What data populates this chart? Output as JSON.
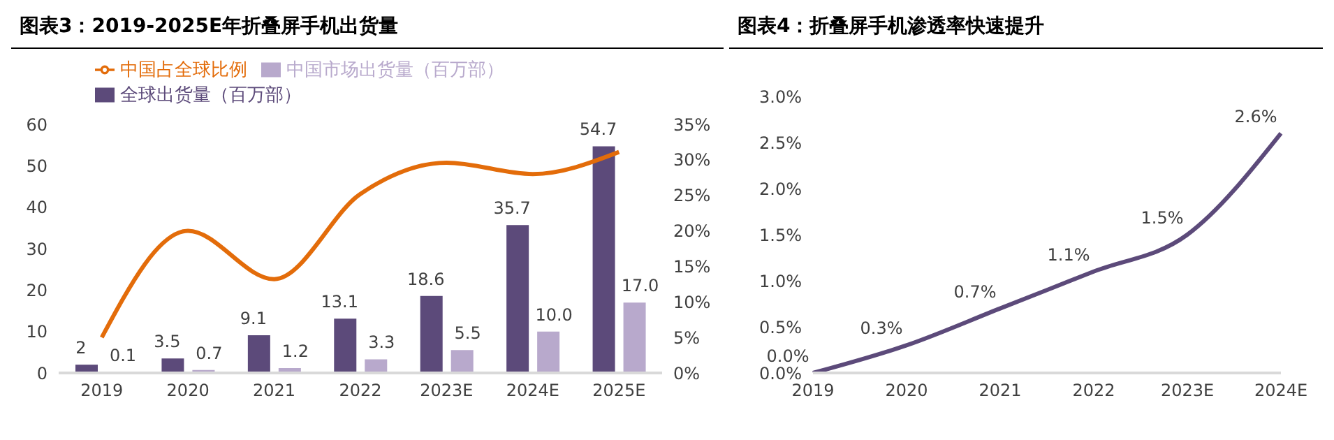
{
  "chart_data": [
    {
      "type": "bar",
      "title": "图表3：2019-2025E年折叠屏手机出货量",
      "categories": [
        "2019",
        "2020",
        "2021",
        "2022",
        "2023E",
        "2024E",
        "2025E"
      ],
      "legend": "top",
      "series": [
        {
          "name": "全球出货量（百万部）",
          "color": "#5c4a7a",
          "values": [
            2,
            3.5,
            9.1,
            13.1,
            18.6,
            35.7,
            54.7
          ],
          "value_labels": [
            "2",
            "3.5",
            "9.1",
            "13.1",
            "18.6",
            "35.7",
            "54.7"
          ]
        },
        {
          "name": "中国市场出货量（百万部）",
          "color": "#b8a9cc",
          "values": [
            0.1,
            0.7,
            1.2,
            3.3,
            5.5,
            10.0,
            17.0
          ],
          "value_labels": [
            "0.1",
            "0.7",
            "1.2",
            "3.3",
            "5.5",
            "10.0",
            "17.0"
          ]
        },
        {
          "name": "中国占全球比例",
          "type": "line",
          "axis": "y2",
          "color": "#e36c0a",
          "values": [
            5,
            20,
            13.2,
            25.2,
            29.6,
            28,
            31.1
          ]
        }
      ],
      "ylim": [
        0,
        60
      ],
      "yticks": [
        0,
        10,
        20,
        30,
        40,
        50,
        60
      ],
      "y2lim": [
        0,
        35
      ],
      "y2ticks": [
        {
          "value": 0,
          "label": "0%"
        },
        {
          "value": 5,
          "label": "5%"
        },
        {
          "value": 10,
          "label": "10%"
        },
        {
          "value": 15,
          "label": "15%"
        },
        {
          "value": 20,
          "label": "20%"
        },
        {
          "value": 25,
          "label": "25%"
        },
        {
          "value": 30,
          "label": "30%"
        },
        {
          "value": 35,
          "label": "35%"
        }
      ]
    },
    {
      "type": "line",
      "title": "图表4：折叠屏手机渗透率快速提升",
      "categories": [
        "2019",
        "2020",
        "2021",
        "2022",
        "2023E",
        "2024E"
      ],
      "series": [
        {
          "color": "#5c4a7a",
          "values": [
            0,
            0.3,
            0.7,
            1.1,
            1.5,
            2.6
          ],
          "value_labels": [
            "0.0%",
            "0.3%",
            "0.7%",
            "1.1%",
            "1.5%",
            "2.6%"
          ]
        }
      ],
      "ylim": [
        0,
        3.0
      ],
      "yticks": [
        {
          "value": 0,
          "label": "0.0%"
        },
        {
          "value": 0.5,
          "label": "0.5%"
        },
        {
          "value": 1,
          "label": "1.0%"
        },
        {
          "value": 1.5,
          "label": "1.5%"
        },
        {
          "value": 2,
          "label": "2.0%"
        },
        {
          "value": 2.5,
          "label": "2.5%"
        },
        {
          "value": 3,
          "label": "3.0%"
        }
      ]
    }
  ]
}
